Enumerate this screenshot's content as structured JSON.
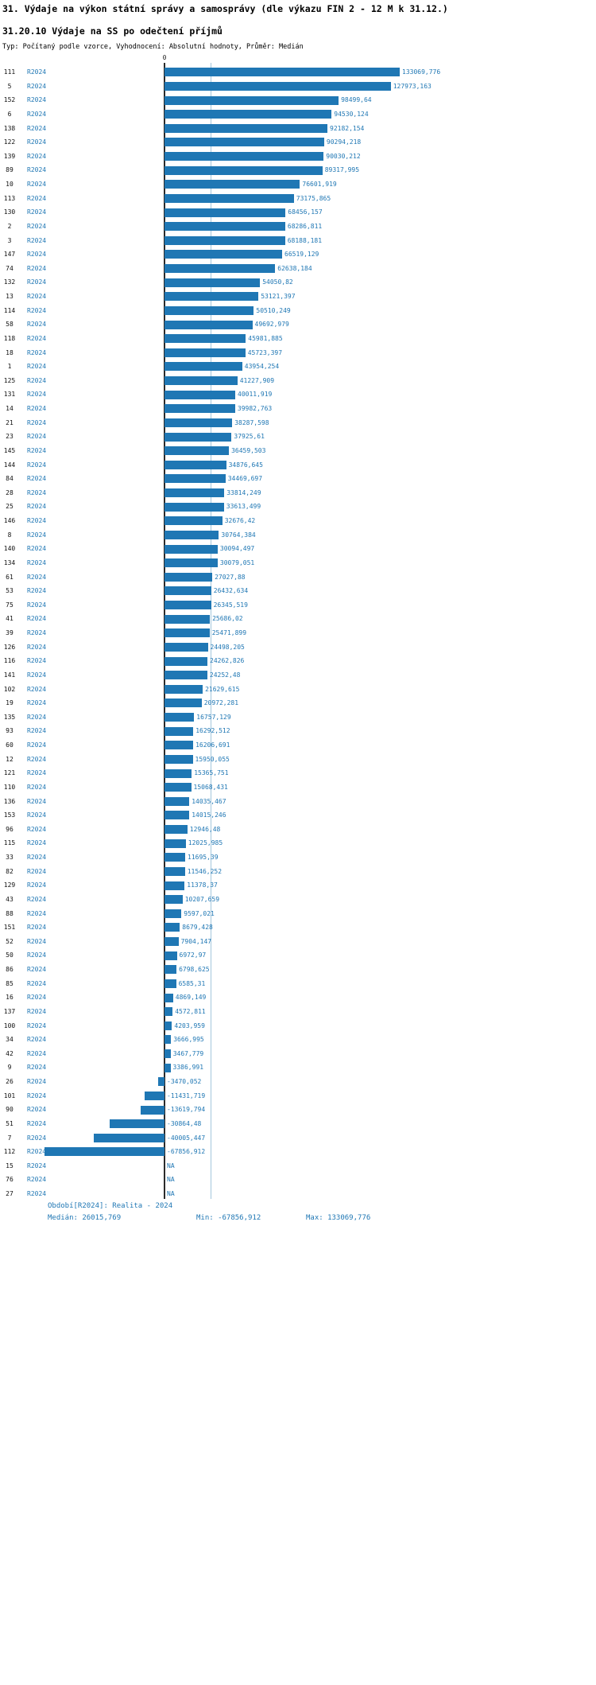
{
  "page": {
    "title": "31. Výdaje na výkon státní správy a samosprávy (dle výkazu FIN 2 - 12 M k 31.12.)",
    "subtitle": "31.20.10 Výdaje na SS po odečtení příjmů",
    "meta": "Typ: Počítaný podle vzorce, Vyhodnocení: Absolutní hodnoty, Průměr: Medián"
  },
  "chart_data": {
    "type": "bar",
    "orientation": "horizontal",
    "series_label": "R2024",
    "zero_tick_label": "0",
    "median_value": 26015.769,
    "min_value": -67856.912,
    "max_value": 133069.776,
    "xlim": [
      -67856.912,
      133069.776
    ],
    "legend_position": "none",
    "grid": false,
    "colors": {
      "bar": "#1f77b4",
      "value_label": "#1f77b4",
      "period_label": "#1f77b4",
      "median_line": "#a3c6dd",
      "axis_line": "#2b2b2b",
      "footer_text": "#1f77b4"
    },
    "rows": [
      {
        "label": "111",
        "value": 133069.776,
        "display": "133069,776"
      },
      {
        "label": "5",
        "value": 127973.163,
        "display": "127973,163"
      },
      {
        "label": "152",
        "value": 98499.64,
        "display": "98499,64"
      },
      {
        "label": "6",
        "value": 94530.124,
        "display": "94530,124"
      },
      {
        "label": "138",
        "value": 92182.154,
        "display": "92182,154"
      },
      {
        "label": "122",
        "value": 90294.218,
        "display": "90294,218"
      },
      {
        "label": "139",
        "value": 90030.212,
        "display": "90030,212"
      },
      {
        "label": "89",
        "value": 89317.995,
        "display": "89317,995"
      },
      {
        "label": "10",
        "value": 76601.919,
        "display": "76601,919"
      },
      {
        "label": "113",
        "value": 73175.865,
        "display": "73175,865"
      },
      {
        "label": "130",
        "value": 68456.157,
        "display": "68456,157"
      },
      {
        "label": "2",
        "value": 68286.811,
        "display": "68286,811"
      },
      {
        "label": "3",
        "value": 68188.181,
        "display": "68188,181"
      },
      {
        "label": "147",
        "value": 66519.129,
        "display": "66519,129"
      },
      {
        "label": "74",
        "value": 62638.184,
        "display": "62638,184"
      },
      {
        "label": "132",
        "value": 54050.82,
        "display": "54050,82"
      },
      {
        "label": "13",
        "value": 53121.397,
        "display": "53121,397"
      },
      {
        "label": "114",
        "value": 50510.249,
        "display": "50510,249"
      },
      {
        "label": "58",
        "value": 49692.979,
        "display": "49692,979"
      },
      {
        "label": "118",
        "value": 45981.885,
        "display": "45981,885"
      },
      {
        "label": "18",
        "value": 45723.397,
        "display": "45723,397"
      },
      {
        "label": "1",
        "value": 43954.254,
        "display": "43954,254"
      },
      {
        "label": "125",
        "value": 41227.909,
        "display": "41227,909"
      },
      {
        "label": "131",
        "value": 40011.919,
        "display": "40011,919"
      },
      {
        "label": "14",
        "value": 39982.763,
        "display": "39982,763"
      },
      {
        "label": "21",
        "value": 38287.598,
        "display": "38287,598"
      },
      {
        "label": "23",
        "value": 37925.61,
        "display": "37925,61"
      },
      {
        "label": "145",
        "value": 36459.503,
        "display": "36459,503"
      },
      {
        "label": "144",
        "value": 34876.645,
        "display": "34876,645"
      },
      {
        "label": "84",
        "value": 34469.697,
        "display": "34469,697"
      },
      {
        "label": "28",
        "value": 33814.249,
        "display": "33814,249"
      },
      {
        "label": "25",
        "value": 33613.499,
        "display": "33613,499"
      },
      {
        "label": "146",
        "value": 32676.42,
        "display": "32676,42"
      },
      {
        "label": "8",
        "value": 30764.384,
        "display": "30764,384"
      },
      {
        "label": "140",
        "value": 30094.497,
        "display": "30094,497"
      },
      {
        "label": "134",
        "value": 30079.051,
        "display": "30079,051"
      },
      {
        "label": "61",
        "value": 27027.88,
        "display": "27027,88"
      },
      {
        "label": "53",
        "value": 26432.634,
        "display": "26432,634"
      },
      {
        "label": "75",
        "value": 26345.519,
        "display": "26345,519"
      },
      {
        "label": "41",
        "value": 25686.02,
        "display": "25686,02"
      },
      {
        "label": "39",
        "value": 25471.899,
        "display": "25471,899"
      },
      {
        "label": "126",
        "value": 24498.205,
        "display": "24498,205"
      },
      {
        "label": "116",
        "value": 24262.826,
        "display": "24262,826"
      },
      {
        "label": "141",
        "value": 24252.48,
        "display": "24252,48"
      },
      {
        "label": "102",
        "value": 21629.615,
        "display": "21629,615"
      },
      {
        "label": "19",
        "value": 20972.281,
        "display": "20972,281"
      },
      {
        "label": "135",
        "value": 16757.129,
        "display": "16757,129"
      },
      {
        "label": "93",
        "value": 16292.512,
        "display": "16292,512"
      },
      {
        "label": "60",
        "value": 16206.691,
        "display": "16206,691"
      },
      {
        "label": "12",
        "value": 15950.055,
        "display": "15950,055"
      },
      {
        "label": "121",
        "value": 15365.751,
        "display": "15365,751"
      },
      {
        "label": "110",
        "value": 15068.431,
        "display": "15068,431"
      },
      {
        "label": "136",
        "value": 14035.467,
        "display": "14035,467"
      },
      {
        "label": "153",
        "value": 14015.246,
        "display": "14015,246"
      },
      {
        "label": "96",
        "value": 12946.48,
        "display": "12946,48"
      },
      {
        "label": "115",
        "value": 12025.985,
        "display": "12025,985"
      },
      {
        "label": "33",
        "value": 11695.39,
        "display": "11695,39"
      },
      {
        "label": "82",
        "value": 11546.252,
        "display": "11546,252"
      },
      {
        "label": "129",
        "value": 11378.37,
        "display": "11378,37"
      },
      {
        "label": "43",
        "value": 10207.659,
        "display": "10207,659"
      },
      {
        "label": "88",
        "value": 9597.021,
        "display": "9597,021"
      },
      {
        "label": "151",
        "value": 8679.428,
        "display": "8679,428"
      },
      {
        "label": "52",
        "value": 7904.147,
        "display": "7904,147"
      },
      {
        "label": "50",
        "value": 6972.97,
        "display": "6972,97"
      },
      {
        "label": "86",
        "value": 6798.625,
        "display": "6798,625"
      },
      {
        "label": "85",
        "value": 6585.31,
        "display": "6585,31"
      },
      {
        "label": "16",
        "value": 4869.149,
        "display": "4869,149"
      },
      {
        "label": "137",
        "value": 4572.811,
        "display": "4572,811"
      },
      {
        "label": "100",
        "value": 4203.959,
        "display": "4203,959"
      },
      {
        "label": "34",
        "value": 3666.995,
        "display": "3666,995"
      },
      {
        "label": "42",
        "value": 3467.779,
        "display": "3467,779"
      },
      {
        "label": "9",
        "value": 3386.991,
        "display": "3386,991"
      },
      {
        "label": "26",
        "value": -3470.052,
        "display": "-3470,052"
      },
      {
        "label": "101",
        "value": -11431.719,
        "display": "-11431,719"
      },
      {
        "label": "90",
        "value": -13619.794,
        "display": "-13619,794"
      },
      {
        "label": "51",
        "value": -30864.48,
        "display": "-30864,48"
      },
      {
        "label": "7",
        "value": -40005.447,
        "display": "-40005,447"
      },
      {
        "label": "112",
        "value": -67856.912,
        "display": "-67856,912"
      },
      {
        "label": "15",
        "value": null,
        "display": "NA"
      },
      {
        "label": "76",
        "value": null,
        "display": "NA"
      },
      {
        "label": "27",
        "value": null,
        "display": "NA"
      }
    ]
  },
  "footer": {
    "period": "Období[R2024]: Realita - 2024",
    "median": "Medián: 26015,769",
    "min": "Min: -67856,912",
    "max": "Max: 133069,776"
  }
}
